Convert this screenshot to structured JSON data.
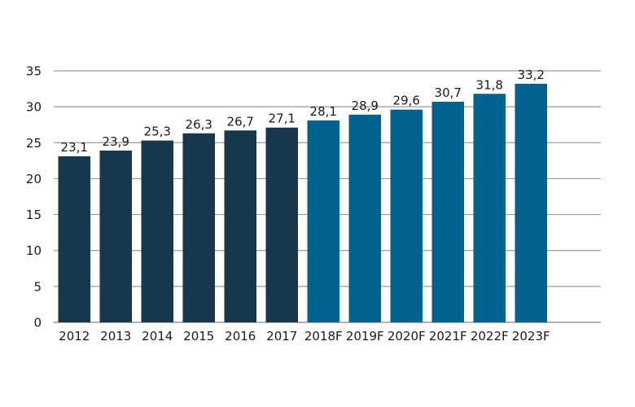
{
  "chart_data": {
    "type": "bar",
    "title": "",
    "xlabel": "",
    "ylabel": "",
    "categories": [
      "2012",
      "2013",
      "2014",
      "2015",
      "2016",
      "2017",
      "2018F",
      "2019F",
      "2020F",
      "2021F",
      "2022F",
      "2023F"
    ],
    "values": [
      23.1,
      23.9,
      25.3,
      26.3,
      26.7,
      27.1,
      28.1,
      28.9,
      29.6,
      30.7,
      31.8,
      33.2
    ],
    "data_labels": [
      "23,1",
      "23,9",
      "25,3",
      "26,3",
      "26,7",
      "27,1",
      "28,1",
      "28,9",
      "29,6",
      "30,7",
      "31,8",
      "33,2"
    ],
    "forecast": [
      false,
      false,
      false,
      false,
      false,
      false,
      true,
      true,
      true,
      true,
      true,
      true
    ],
    "ylim": [
      0,
      35
    ],
    "yticks": [
      0,
      5,
      10,
      15,
      20,
      25,
      30,
      35
    ],
    "grid": true,
    "legend": "none",
    "colors": {
      "actual": "#17374c",
      "forecast": "#00628f",
      "grid": "#9a9a9a",
      "text": "#1a1a1a"
    }
  }
}
